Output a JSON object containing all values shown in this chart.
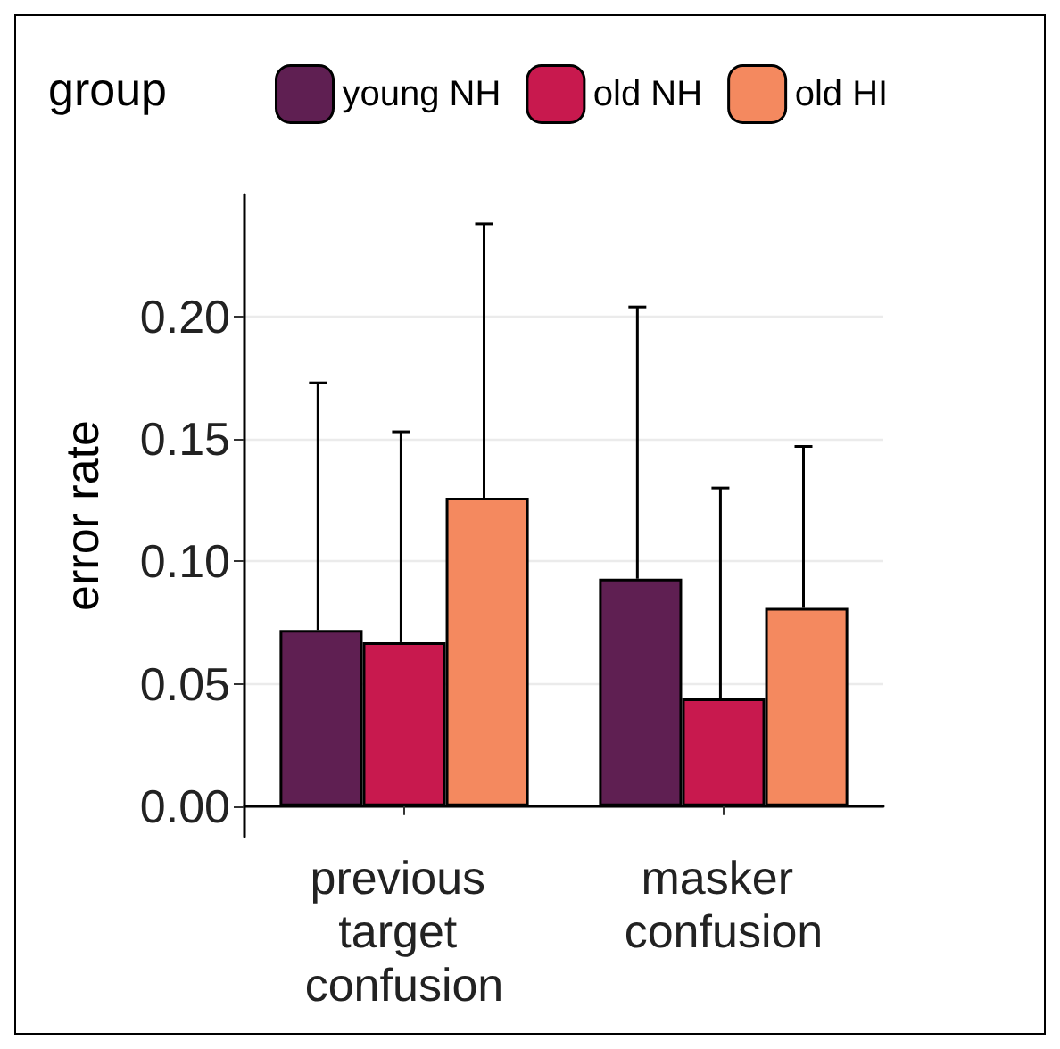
{
  "chart_data": {
    "type": "bar",
    "ylabel": "error rate",
    "legend_title": "group",
    "categories": [
      "previous target confusion",
      "masker confusion"
    ],
    "series": [
      {
        "name": "young NH",
        "color": "#5f1f52",
        "values": [
          0.072,
          0.093
        ],
        "errors": [
          [
            0.072,
            0.173
          ],
          [
            0.093,
            0.204
          ]
        ]
      },
      {
        "name": "old NH",
        "color": "#c8194e",
        "values": [
          0.067,
          0.044
        ],
        "errors": [
          [
            0.067,
            0.153
          ],
          [
            0.044,
            0.13
          ]
        ]
      },
      {
        "name": "old HI",
        "color": "#f4895f",
        "values": [
          0.126,
          0.081
        ],
        "errors": [
          [
            0.126,
            0.238
          ],
          [
            0.081,
            0.147
          ]
        ]
      }
    ],
    "ylim": [
      -0.0125,
      0.25
    ],
    "yticks": [
      {
        "value": 0,
        "label": "0.00"
      },
      {
        "value": 0.05,
        "label": "0.05"
      },
      {
        "value": 0.1,
        "label": "0.10"
      },
      {
        "value": 0.15,
        "label": "0.15"
      },
      {
        "value": 0.2,
        "label": "0.20"
      }
    ],
    "grid": "y",
    "legend": "top"
  }
}
